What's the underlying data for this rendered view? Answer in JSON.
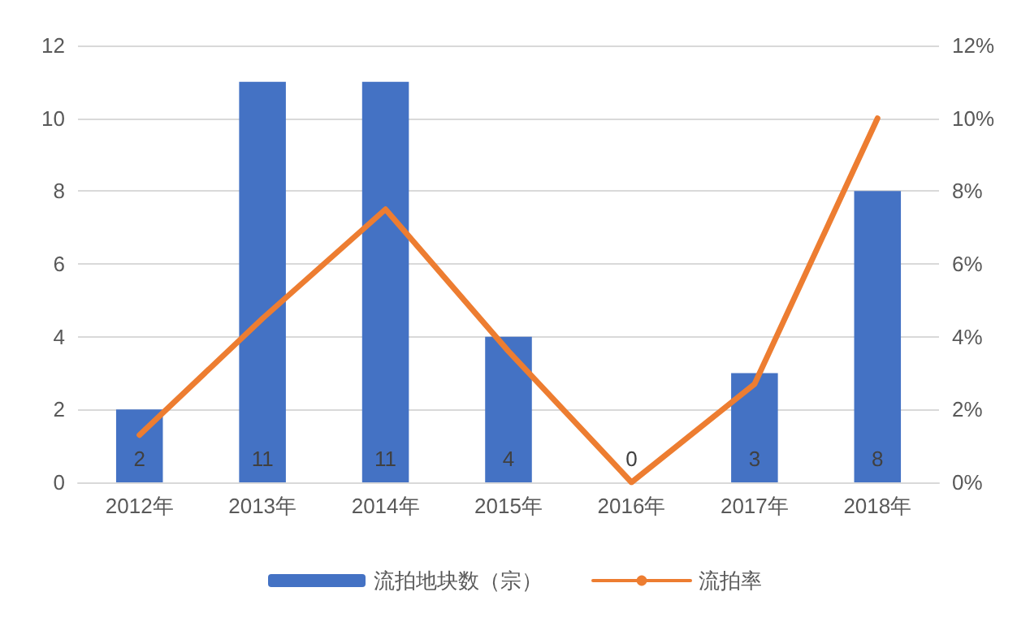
{
  "chart_data": {
    "type": "bar",
    "categories": [
      "2012年",
      "2013年",
      "2014年",
      "2015年",
      "2016年",
      "2017年",
      "2018年"
    ],
    "series": [
      {
        "name": "流拍地块数（宗）",
        "color": "#4472c4",
        "values": [
          2,
          11,
          11,
          4,
          0,
          3,
          8
        ],
        "data_labels": true
      },
      {
        "name": "流拍率",
        "type": "line",
        "axis": "y2",
        "color": "#ed7d31",
        "values": [
          1.3,
          4.5,
          7.5,
          3.6,
          0,
          2.7,
          10
        ]
      }
    ],
    "ylim": [
      0,
      12
    ],
    "yticks": [
      0,
      2,
      4,
      6,
      8,
      10,
      12
    ],
    "y2lim": [
      0,
      12
    ],
    "y2ticks": [
      {
        "value": 0,
        "label": "0%"
      },
      {
        "value": 2,
        "label": "2%"
      },
      {
        "value": 4,
        "label": "4%"
      },
      {
        "value": 6,
        "label": "6%"
      },
      {
        "value": 8,
        "label": "8%"
      },
      {
        "value": 10,
        "label": "10%"
      },
      {
        "value": 12,
        "label": "12%"
      }
    ],
    "grid": "y",
    "legend": "bottom",
    "marker": "none",
    "line_style": "solid"
  }
}
